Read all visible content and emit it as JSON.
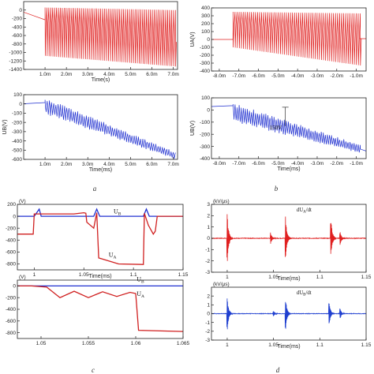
{
  "captions": {
    "a": "a",
    "b": "b",
    "c": "c",
    "d": "d"
  },
  "chart_data": [
    {
      "id": "a1",
      "type": "line",
      "panel": "a",
      "position": "top",
      "xlabel": "Time(s)",
      "ylabel": "",
      "xlim": [
        0,
        7.2
      ],
      "ylim": [
        -1400,
        200
      ],
      "x_ticks": [
        {
          "v": 1,
          "label": "1.0m"
        },
        {
          "v": 2,
          "label": "2.0m"
        },
        {
          "v": 3,
          "label": "3.0m"
        },
        {
          "v": 4,
          "label": "4.0m"
        },
        {
          "v": 5,
          "label": "5.0m"
        },
        {
          "v": 6,
          "label": "6.0m"
        },
        {
          "v": 7,
          "label": "7.0m"
        }
      ],
      "y_ticks": [
        {
          "v": 0,
          "label": "0"
        },
        {
          "v": -200,
          "label": "-200"
        },
        {
          "v": -400,
          "label": "-400"
        },
        {
          "v": -600,
          "label": "-600"
        },
        {
          "v": -800,
          "label": "-800"
        },
        {
          "v": -1000,
          "label": "-1000"
        },
        {
          "v": -1200,
          "label": "-1200"
        },
        {
          "v": -1400,
          "label": "-1400"
        }
      ],
      "color": "#e02020",
      "series": [
        {
          "values_desc": "oscillation",
          "baseline": [
            [
              0,
              -50
            ],
            [
              1.0,
              -230
            ]
          ],
          "osc_start": 1.0,
          "osc_end": 7.1,
          "upper": [
            [
              1.0,
              60
            ],
            [
              7.1,
              0
            ]
          ],
          "lower": [
            [
              1.0,
              -1080
            ],
            [
              7.1,
              -1330
            ]
          ],
          "mid": [
            [
              1.0,
              -280
            ],
            [
              7.1,
              -750
            ]
          ],
          "cycles": 68
        }
      ],
      "annotations": []
    },
    {
      "id": "a2",
      "type": "line",
      "panel": "a",
      "position": "bottom",
      "xlabel": "Time(ms)",
      "ylabel": "UB(V)",
      "xlim": [
        0,
        7.2
      ],
      "ylim": [
        -600,
        100
      ],
      "x_ticks": [
        {
          "v": 1,
          "label": "1.0m"
        },
        {
          "v": 2,
          "label": "2.0m"
        },
        {
          "v": 3,
          "label": "3.0m"
        },
        {
          "v": 4,
          "label": "4.0m"
        },
        {
          "v": 5,
          "label": "5.0m"
        },
        {
          "v": 6,
          "label": "6.0m"
        },
        {
          "v": 7,
          "label": "7.0m"
        }
      ],
      "y_ticks": [
        {
          "v": 100,
          "label": "100"
        },
        {
          "v": 0,
          "label": "0"
        },
        {
          "v": -100,
          "label": "-100"
        },
        {
          "v": -200,
          "label": "-200"
        },
        {
          "v": -300,
          "label": "-300"
        },
        {
          "v": -400,
          "label": "-400"
        },
        {
          "v": -500,
          "label": "-500"
        },
        {
          "v": -600,
          "label": "-600"
        }
      ],
      "color": "#2030d0",
      "series": [
        {
          "baseline": [
            [
              0,
              0
            ],
            [
              1.0,
              10
            ]
          ],
          "osc_start": 1.0,
          "osc_end": 7.1,
          "mid": [
            [
              1.0,
              -20
            ],
            [
              7.1,
              -560
            ]
          ],
          "amp": [
            [
              1.0,
              90
            ],
            [
              7.1,
              40
            ]
          ],
          "cycles": 60
        }
      ],
      "annotations": []
    },
    {
      "id": "b1",
      "type": "line",
      "panel": "b",
      "position": "top",
      "xlabel": "",
      "ylabel": "UA(V)",
      "xlim": [
        -8.4,
        -0.5
      ],
      "ylim": [
        -400,
        400
      ],
      "x_ticks": [
        {
          "v": -8,
          "label": "-8.0m"
        },
        {
          "v": -7,
          "label": "-7.0m"
        },
        {
          "v": -6,
          "label": "-6.0m"
        },
        {
          "v": -5,
          "label": "-5.0m"
        },
        {
          "v": -4,
          "label": "-4.0m"
        },
        {
          "v": -3,
          "label": "-3.0m"
        },
        {
          "v": -2,
          "label": "-2.0m"
        },
        {
          "v": -1,
          "label": "-1.0m"
        }
      ],
      "y_ticks": [
        {
          "v": 400,
          "label": "400"
        },
        {
          "v": 300,
          "label": "300"
        },
        {
          "v": 200,
          "label": "200"
        },
        {
          "v": 100,
          "label": "100"
        },
        {
          "v": 0,
          "label": "0"
        },
        {
          "v": -100,
          "label": "-100"
        },
        {
          "v": -200,
          "label": "-200"
        },
        {
          "v": -300,
          "label": "-300"
        },
        {
          "v": -400,
          "label": "-400"
        }
      ],
      "color": "#e02020",
      "series": [
        {
          "baseline": [
            [
              -8.4,
              0
            ],
            [
              -7.3,
              0
            ]
          ],
          "osc_start": -7.3,
          "osc_end": -0.8,
          "upper": [
            [
              -7.3,
              350
            ],
            [
              -0.8,
              330
            ]
          ],
          "lower": [
            [
              -7.3,
              -100
            ],
            [
              -0.8,
              -330
            ]
          ],
          "mid": [
            [
              -7.3,
              200
            ],
            [
              -0.8,
              0
            ]
          ],
          "cycles": 62,
          "tail": [
            [
              -0.8,
              10
            ],
            [
              -0.5,
              10
            ]
          ]
        }
      ],
      "annotations": []
    },
    {
      "id": "b2",
      "type": "line",
      "panel": "b",
      "position": "bottom",
      "xlabel": "Time(ms)",
      "ylabel": "UB(V)",
      "xlim": [
        -8.4,
        -0.5
      ],
      "ylim": [
        -400,
        100
      ],
      "x_ticks": [
        {
          "v": -8,
          "label": "-8.0m"
        },
        {
          "v": -7,
          "label": "-7.0m"
        },
        {
          "v": -6,
          "label": "-6.0m"
        },
        {
          "v": -5,
          "label": "-5.0m"
        },
        {
          "v": -4,
          "label": "-4.0m"
        },
        {
          "v": -3,
          "label": "-3.0m"
        },
        {
          "v": -2,
          "label": "-2.0m"
        },
        {
          "v": -1,
          "label": "-1.0m"
        }
      ],
      "y_ticks": [
        {
          "v": 100,
          "label": "100"
        },
        {
          "v": 0,
          "label": "0"
        },
        {
          "v": -100,
          "label": "-100"
        },
        {
          "v": -200,
          "label": "-200"
        },
        {
          "v": -300,
          "label": "-300"
        },
        {
          "v": -400,
          "label": "-400"
        }
      ],
      "color": "#2030d0",
      "series": [
        {
          "baseline": [
            [
              -8.4,
              30
            ],
            [
              -7.3,
              30
            ]
          ],
          "osc_start": -7.3,
          "osc_end": -0.8,
          "mid": [
            [
              -7.3,
              -20
            ],
            [
              -0.8,
              -320
            ]
          ],
          "amp": [
            [
              -7.3,
              80
            ],
            [
              -0.8,
              35
            ]
          ],
          "cycles": 62,
          "tail": [
            [
              -0.8,
              -320
            ],
            [
              -0.5,
              -330
            ]
          ]
        }
      ],
      "annotations": [
        {
          "text": "150V",
          "x": -5.35,
          "y": -120
        }
      ]
    },
    {
      "id": "c1",
      "type": "line",
      "panel": "c",
      "position": "top",
      "xlabel": "Time(ms)",
      "ylabel": "(V)",
      "xlim": [
        0.983,
        1.15
      ],
      "ylim": [
        -900,
        200
      ],
      "x_ticks": [
        {
          "v": 1.0,
          "label": "1"
        },
        {
          "v": 1.05,
          "label": "1.05"
        },
        {
          "v": 1.1,
          "label": "1.1"
        },
        {
          "v": 1.15,
          "label": "1.15"
        }
      ],
      "y_ticks": [
        {
          "v": 200,
          "label": "200"
        },
        {
          "v": 0,
          "label": "0"
        },
        {
          "v": -200,
          "label": "-200"
        },
        {
          "v": -400,
          "label": "-400"
        },
        {
          "v": -600,
          "label": "-600"
        },
        {
          "v": -800,
          "label": "-800"
        }
      ],
      "series": [
        {
          "name": "UB",
          "color": "#2030d0",
          "points": [
            [
              0.983,
              0
            ],
            [
              1.0,
              0
            ],
            [
              1.005,
              120
            ],
            [
              1.007,
              0
            ],
            [
              1.06,
              0
            ],
            [
              1.063,
              120
            ],
            [
              1.066,
              0
            ],
            [
              1.11,
              0
            ],
            [
              1.113,
              120
            ],
            [
              1.116,
              0
            ],
            [
              1.15,
              0
            ]
          ]
        },
        {
          "name": "UA",
          "color": "#d02020",
          "points": [
            [
              0.983,
              -300
            ],
            [
              0.999,
              -300
            ],
            [
              1.0,
              40
            ],
            [
              1.04,
              40
            ],
            [
              1.05,
              60
            ],
            [
              1.052,
              50
            ],
            [
              1.053,
              -100
            ],
            [
              1.06,
              -200
            ],
            [
              1.063,
              60
            ],
            [
              1.065,
              -700
            ],
            [
              1.085,
              -800
            ],
            [
              1.11,
              -810
            ],
            [
              1.111,
              50
            ],
            [
              1.115,
              -150
            ],
            [
              1.12,
              -300
            ],
            [
              1.122,
              -250
            ],
            [
              1.124,
              0
            ],
            [
              1.15,
              0
            ]
          ]
        }
      ],
      "labels": [
        {
          "text": "U",
          "sub": "B",
          "x": 1.08,
          "y": 50
        },
        {
          "text": "U",
          "sub": "A",
          "x": 1.075,
          "y": -680
        }
      ],
      "annotations": []
    },
    {
      "id": "c2",
      "type": "line",
      "panel": "c",
      "position": "bottom",
      "xlabel": "",
      "ylabel": "(V)",
      "xlim": [
        1.0475,
        1.065
      ],
      "ylim": [
        -900,
        100
      ],
      "x_ticks": [
        {
          "v": 1.05,
          "label": "1.05"
        },
        {
          "v": 1.055,
          "label": "1.055"
        },
        {
          "v": 1.06,
          "label": "1.06"
        },
        {
          "v": 1.065,
          "label": "1.065"
        }
      ],
      "y_ticks": [
        {
          "v": 0,
          "label": "0"
        },
        {
          "v": -200,
          "label": "-200"
        },
        {
          "v": -400,
          "label": "-400"
        },
        {
          "v": -600,
          "label": "-600"
        },
        {
          "v": -800,
          "label": "-800"
        }
      ],
      "series": [
        {
          "name": "UB",
          "color": "#2030d0",
          "points": [
            [
              1.0475,
              0
            ],
            [
              1.0598,
              0
            ],
            [
              1.065,
              0
            ]
          ]
        },
        {
          "name": "UA",
          "color": "#d02020",
          "points": [
            [
              1.0475,
              0
            ],
            [
              1.049,
              0
            ],
            [
              1.0506,
              -20
            ],
            [
              1.052,
              -200
            ],
            [
              1.0535,
              -90
            ],
            [
              1.055,
              -200
            ],
            [
              1.0565,
              -100
            ],
            [
              1.058,
              -180
            ],
            [
              1.0594,
              -110
            ],
            [
              1.06,
              -130
            ],
            [
              1.0603,
              -760
            ],
            [
              1.065,
              -780
            ]
          ]
        }
      ],
      "labels": [
        {
          "text": "U",
          "sub": "B",
          "x": 1.0601,
          "y": 80
        },
        {
          "text": "U",
          "sub": "A",
          "x": 1.0601,
          "y": -170
        }
      ],
      "annotations": []
    },
    {
      "id": "d1",
      "type": "line",
      "panel": "d",
      "position": "top",
      "xlabel": "Time(ms)",
      "ylabel": "(kV/μs)",
      "xlim": [
        0.983,
        1.15
      ],
      "ylim": [
        -3,
        3
      ],
      "x_ticks": [
        {
          "v": 1.0,
          "label": "1"
        },
        {
          "v": 1.05,
          "label": "1.05"
        },
        {
          "v": 1.1,
          "label": "1.1"
        },
        {
          "v": 1.15,
          "label": "1.15"
        }
      ],
      "y_ticks": [
        {
          "v": 3,
          "label": "3"
        },
        {
          "v": 2,
          "label": "2"
        },
        {
          "v": 1,
          "label": "1"
        },
        {
          "v": 0,
          "label": "0"
        },
        {
          "v": -1,
          "label": "-1"
        },
        {
          "v": -2,
          "label": "-2"
        },
        {
          "v": -3,
          "label": "-3"
        }
      ],
      "color": "#e02020",
      "series": [
        {
          "name": "dUA/dt",
          "spikes": [
            {
              "x": 1.0,
              "amp": 2.3
            },
            {
              "x": 1.047,
              "amp": 0.5
            },
            {
              "x": 1.063,
              "amp": 2.0
            },
            {
              "x": 1.112,
              "amp": 1.8
            },
            {
              "x": 1.122,
              "amp": 0.6
            }
          ]
        }
      ],
      "legend_label": {
        "pre": "dU",
        "sub": "A",
        "post": "/dt"
      },
      "annotations": []
    },
    {
      "id": "d2",
      "type": "line",
      "panel": "d",
      "position": "bottom",
      "xlabel": "Time(ms)",
      "ylabel": "(kV/μs)",
      "xlim": [
        0.983,
        1.15
      ],
      "ylim": [
        -3,
        3
      ],
      "x_ticks": [
        {
          "v": 1.0,
          "label": "1"
        },
        {
          "v": 1.05,
          "label": "1.05"
        },
        {
          "v": 1.1,
          "label": "1.1"
        },
        {
          "v": 1.15,
          "label": "1.15"
        }
      ],
      "y_ticks": [
        {
          "v": 2,
          "label": "2"
        },
        {
          "v": 1,
          "label": "1"
        },
        {
          "v": 0,
          "label": "0"
        },
        {
          "v": -1,
          "label": "-1"
        },
        {
          "v": -2,
          "label": "-2"
        },
        {
          "v": -3,
          "label": "-3"
        }
      ],
      "color": "#2040d0",
      "series": [
        {
          "name": "dUB/dt",
          "spikes": [
            {
              "x": 1.0,
              "amp": 2.0
            },
            {
              "x": 1.05,
              "amp": 0.3
            },
            {
              "x": 1.063,
              "amp": 1.9
            },
            {
              "x": 1.11,
              "amp": 1.4
            },
            {
              "x": 1.122,
              "amp": 0.6
            }
          ]
        }
      ],
      "legend_label": {
        "pre": "dU",
        "sub": "B",
        "post": "/dt"
      },
      "annotations": []
    }
  ]
}
